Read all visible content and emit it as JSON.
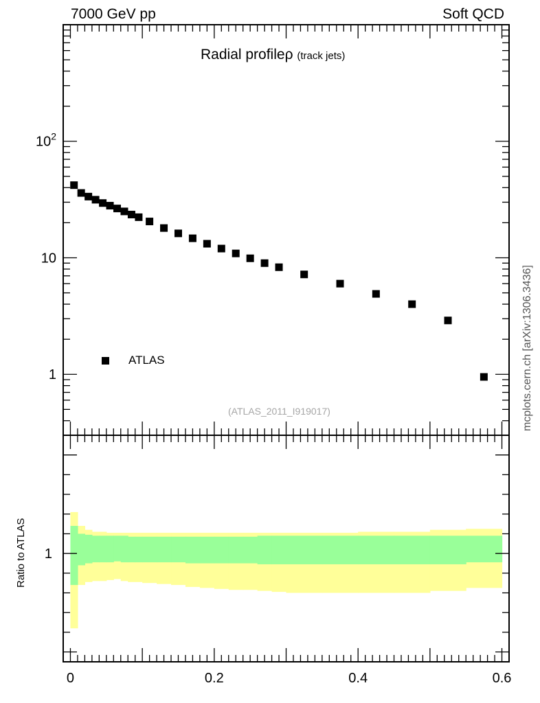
{
  "header": {
    "left": "7000 GeV pp",
    "right": "Soft QCD"
  },
  "side_label": "mcplots.cern.ch [arXiv:1306.3436]",
  "chart_data": [
    {
      "type": "scatter",
      "title": "Radial profile",
      "title_symbol": "ρ",
      "title_suffix": "(track jets)",
      "watermark": "(ATLAS_2011_I919017)",
      "yscale": "log",
      "xlim": [
        -0.01,
        0.61
      ],
      "ylim": [
        0.3,
        1000
      ],
      "y_tick_labels": [
        "1",
        "10",
        "10²"
      ],
      "x_tick_labels": [
        "0",
        "0.2",
        "0.4",
        "0.6"
      ],
      "legend": {
        "position": "bottom-left",
        "entries": [
          "ATLAS"
        ]
      },
      "series": [
        {
          "name": "ATLAS",
          "marker": "square",
          "color": "#000000",
          "x": [
            0.005,
            0.015,
            0.025,
            0.035,
            0.045,
            0.055,
            0.065,
            0.075,
            0.085,
            0.095,
            0.11,
            0.13,
            0.15,
            0.17,
            0.19,
            0.21,
            0.23,
            0.25,
            0.27,
            0.29,
            0.325,
            0.375,
            0.425,
            0.475,
            0.525,
            0.575
          ],
          "y": [
            42,
            36,
            33.5,
            31.5,
            29.5,
            28,
            26.5,
            25,
            23.5,
            22.3,
            20.5,
            18,
            16.2,
            14.7,
            13.2,
            12,
            10.9,
            9.9,
            9,
            8.3,
            7.2,
            6,
            4.9,
            4.0,
            2.9,
            0.95
          ]
        }
      ]
    },
    {
      "type": "area",
      "ylabel": "Ratio to ATLAS",
      "xlim": [
        -0.01,
        0.61
      ],
      "ylim": [
        0.45,
        1.6
      ],
      "y_tick_labels": [
        "1"
      ],
      "bins": [
        0,
        0.01,
        0.02,
        0.03,
        0.04,
        0.05,
        0.06,
        0.07,
        0.08,
        0.09,
        0.1,
        0.12,
        0.14,
        0.16,
        0.18,
        0.2,
        0.22,
        0.24,
        0.26,
        0.28,
        0.3,
        0.35,
        0.4,
        0.45,
        0.5,
        0.55,
        0.6
      ],
      "bands": [
        {
          "name": "stat",
          "color": "#99ff99",
          "lo": [
            0.84,
            0.94,
            0.95,
            0.955,
            0.955,
            0.955,
            0.96,
            0.955,
            0.955,
            0.955,
            0.955,
            0.955,
            0.955,
            0.95,
            0.95,
            0.95,
            0.95,
            0.95,
            0.945,
            0.945,
            0.945,
            0.945,
            0.945,
            0.945,
            0.945,
            0.955
          ],
          "hi": [
            1.14,
            1.1,
            1.095,
            1.09,
            1.09,
            1.09,
            1.09,
            1.09,
            1.085,
            1.085,
            1.085,
            1.085,
            1.085,
            1.085,
            1.085,
            1.085,
            1.085,
            1.085,
            1.09,
            1.09,
            1.09,
            1.09,
            1.09,
            1.09,
            1.09,
            1.09
          ]
        },
        {
          "name": "total",
          "color": "#ffff99",
          "lo": [
            0.62,
            0.84,
            0.855,
            0.86,
            0.86,
            0.865,
            0.87,
            0.86,
            0.855,
            0.855,
            0.85,
            0.845,
            0.84,
            0.83,
            0.825,
            0.82,
            0.815,
            0.815,
            0.81,
            0.805,
            0.8,
            0.8,
            0.8,
            0.8,
            0.81,
            0.825
          ],
          "hi": [
            1.21,
            1.14,
            1.12,
            1.11,
            1.11,
            1.105,
            1.105,
            1.105,
            1.105,
            1.105,
            1.105,
            1.105,
            1.105,
            1.105,
            1.105,
            1.105,
            1.105,
            1.105,
            1.105,
            1.105,
            1.105,
            1.105,
            1.11,
            1.11,
            1.12,
            1.125
          ]
        }
      ]
    }
  ]
}
